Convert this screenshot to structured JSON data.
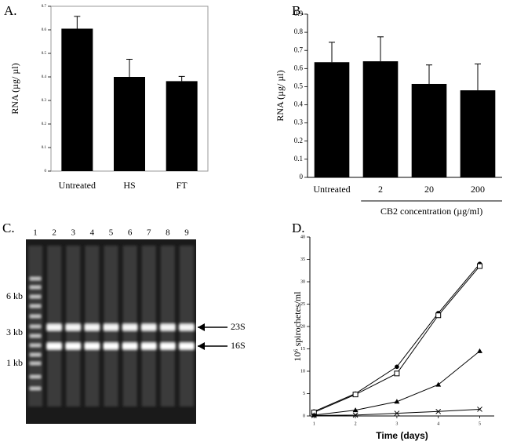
{
  "chart_data": [
    {
      "type": "bar",
      "panel_label": "A.",
      "ylabel": "RNA (µg/ µl)",
      "categories": [
        "Untreated",
        "HS",
        "FT"
      ],
      "values": [
        0.605,
        0.4,
        0.382
      ],
      "errors": [
        0.052,
        0.075,
        0.02
      ],
      "color": "#000000",
      "ylim": [
        0,
        0.7
      ],
      "yticks": [
        0,
        0.1,
        0.2,
        0.3,
        0.4,
        0.5,
        0.6,
        0.7
      ],
      "frame": true
    },
    {
      "type": "bar",
      "panel_label": "B.",
      "ylabel": "RNA (µg/ µl)",
      "xlabel": "CB2 concentration (µg/ml)",
      "categories": [
        "Untreated",
        "2",
        "20",
        "200"
      ],
      "values": [
        0.635,
        0.64,
        0.515,
        0.48
      ],
      "errors": [
        0.11,
        0.135,
        0.105,
        0.145
      ],
      "color": "#000000",
      "ylim": [
        0,
        0.9
      ],
      "yticks": [
        0,
        0.1,
        0.2,
        0.3,
        0.4,
        0.5,
        0.6,
        0.7,
        0.8,
        0.9
      ],
      "frame": false
    },
    {
      "type": "gel",
      "panel_label": "C.",
      "lanes": [
        "1",
        "2",
        "3",
        "4",
        "5",
        "6",
        "7",
        "8",
        "9"
      ],
      "markers": [
        "6 kb",
        "3 kb",
        "1 kb"
      ],
      "bands": [
        "23S",
        "16S"
      ]
    },
    {
      "type": "line",
      "panel_label": "D.",
      "xlabel": "Time (days)",
      "ylabel": "10⁶ spirochetes/ml",
      "x": [
        1,
        2,
        3,
        4,
        5
      ],
      "xlim": [
        0.9,
        5.35
      ],
      "xticks": [
        1,
        2,
        3,
        4,
        5
      ],
      "ylim": [
        0,
        40
      ],
      "yticks": [
        0,
        5,
        10,
        15,
        20,
        25,
        30,
        35,
        40
      ],
      "series": [
        {
          "marker": "circle",
          "color": "#000000",
          "values": [
            1,
            5,
            11,
            23,
            34
          ]
        },
        {
          "marker": "square",
          "color": "#000000",
          "values": [
            0.8,
            4.8,
            9.5,
            22.5,
            33.5
          ]
        },
        {
          "marker": "triangle",
          "color": "#000000",
          "values": [
            0.2,
            1.3,
            3.2,
            7,
            14.5
          ]
        },
        {
          "marker": "x",
          "color": "#000000",
          "values": [
            0.1,
            0.2,
            0.6,
            1,
            1.5
          ]
        }
      ]
    }
  ]
}
